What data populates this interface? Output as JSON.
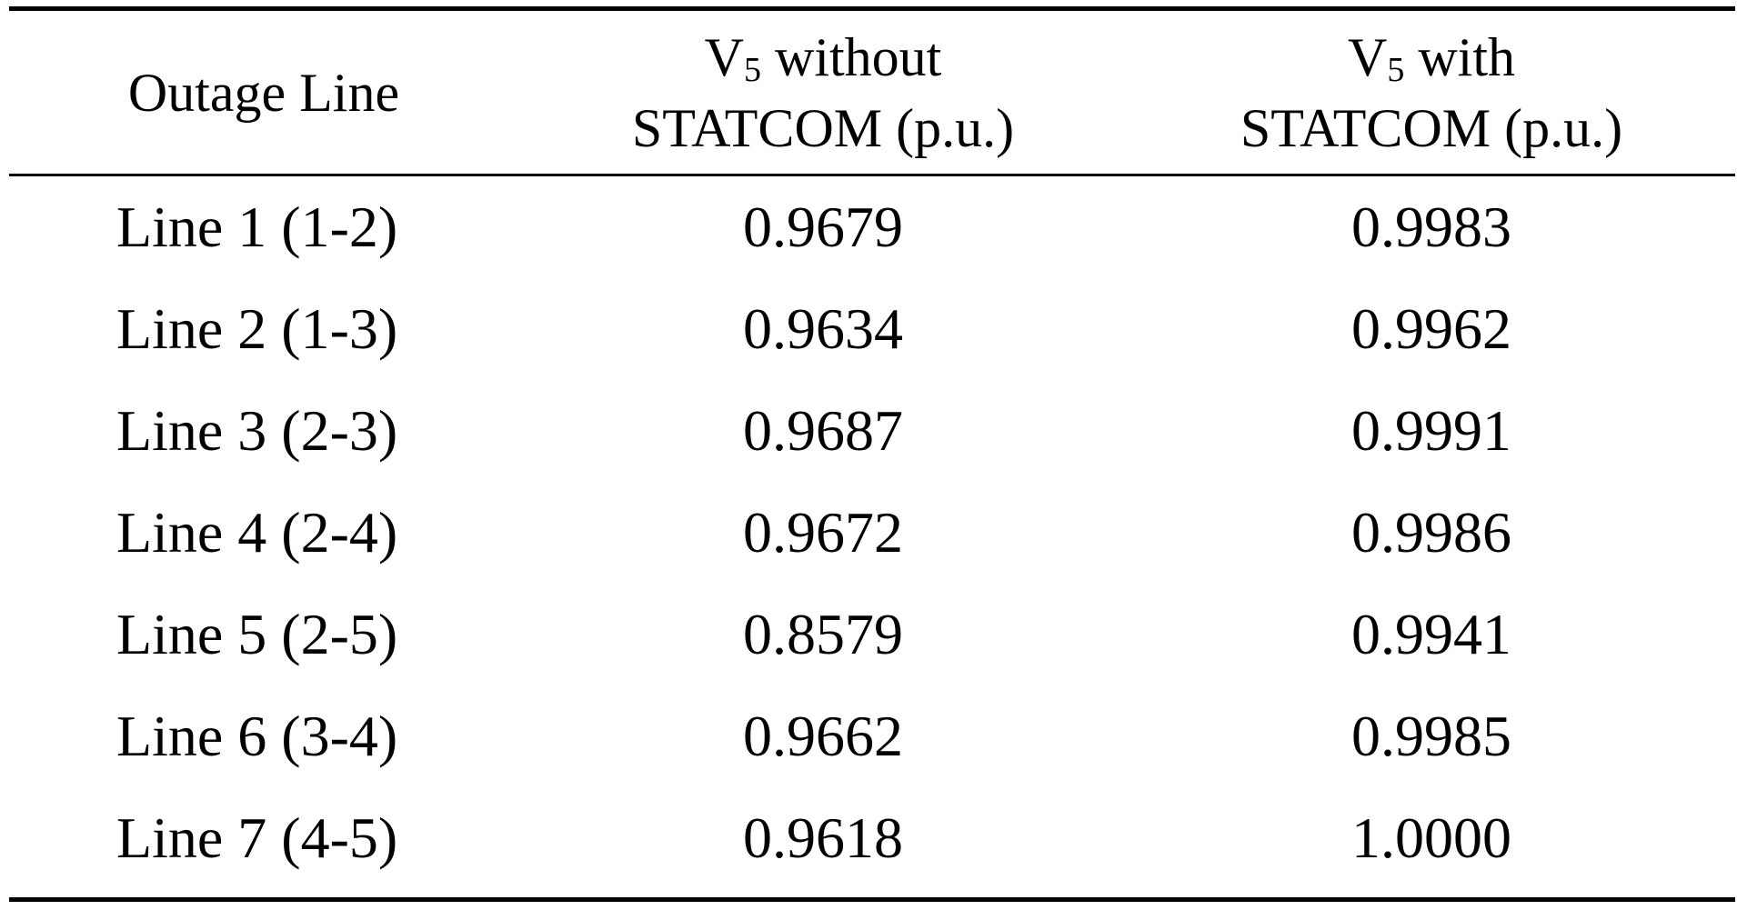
{
  "table": {
    "headers": {
      "col1": "Outage Line",
      "col2_prefix": "V",
      "col2_sub": "5",
      "col2_line1_rest": " without",
      "col2_line2": "STATCOM (p.u.)",
      "col3_prefix": "V",
      "col3_sub": "5",
      "col3_line1_rest": " with",
      "col3_line2": "STATCOM (p.u.)"
    },
    "rows": [
      {
        "line": "Line 1 (1-2)",
        "without": "0.9679",
        "with": "0.9983"
      },
      {
        "line": "Line 2 (1-3)",
        "without": "0.9634",
        "with": "0.9962"
      },
      {
        "line": "Line 3 (2-3)",
        "without": "0.9687",
        "with": "0.9991"
      },
      {
        "line": "Line 4 (2-4)",
        "without": "0.9672",
        "with": "0.9986"
      },
      {
        "line": "Line 5 (2-5)",
        "without": "0.8579",
        "with": "0.9941"
      },
      {
        "line": "Line 6 (3-4)",
        "without": "0.9662",
        "with": "0.9985"
      },
      {
        "line": "Line 7 (4-5)",
        "without": "0.9618",
        "with": "1.0000"
      }
    ]
  }
}
